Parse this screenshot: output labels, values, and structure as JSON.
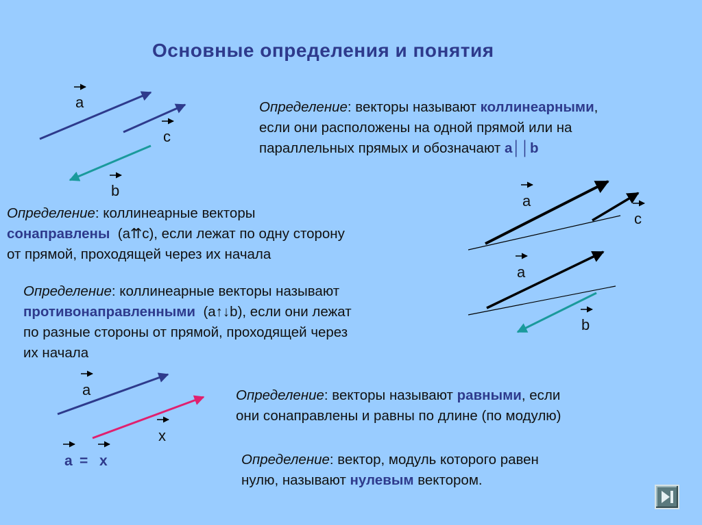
{
  "title": "Основные определения и понятия",
  "colors": {
    "background": "#99ccff",
    "title": "#2e3a8c",
    "highlight": "#2e3a8c",
    "vector_blue": "#2e3a8c",
    "vector_teal": "#1a9a9c",
    "vector_red": "#e0206f",
    "vector_black": "#000000"
  },
  "labels": {
    "a": "a",
    "b": "b",
    "c": "c",
    "x": "x"
  },
  "def_word": "Определение",
  "definitions": {
    "collinear": {
      "l1_before": ": векторы  называют ",
      "l1_term": "коллинеарными",
      "l1_after": ",",
      "l2": "если  они  расположены  на  одной прямой  или  на",
      "l3_text": "параллельных  прямых  и  обозначают  ",
      "notation": "a││b"
    },
    "codirected": {
      "l1_after": ": коллинеарные  векторы",
      "l2_term": "сонаправлены",
      "l2_notation": "(a⇈c)",
      "l2_after": ", если лежат по  одну сторону",
      "l3": "от  прямой,  проходящей  через  их  начала"
    },
    "opposite": {
      "l1_after": ": коллинеарные векторы называют",
      "l2_term": "противонаправленными",
      "l2_notation": "(a↑↓b)",
      "l2_after": ", если они  лежат",
      "l3": "по разные стороны от прямой, проходящей через",
      "l4": "их начала"
    },
    "equal": {
      "l1_before": ": векторы  называют  ",
      "l1_term": "равными",
      "l1_after": ",  если",
      "l2": "они  сонаправлены  и  равны  по  длине  (по  модулю)"
    },
    "zero": {
      "l1_after": ": вектор, модуль  которого  равен",
      "l2_before": "нулю,  называют  ",
      "l2_term": "нулевым",
      "l2_after": " вектором."
    }
  },
  "equality": {
    "left": "a",
    "sign": "=",
    "right": "x"
  },
  "nav": {
    "icon": "play-end-icon"
  }
}
